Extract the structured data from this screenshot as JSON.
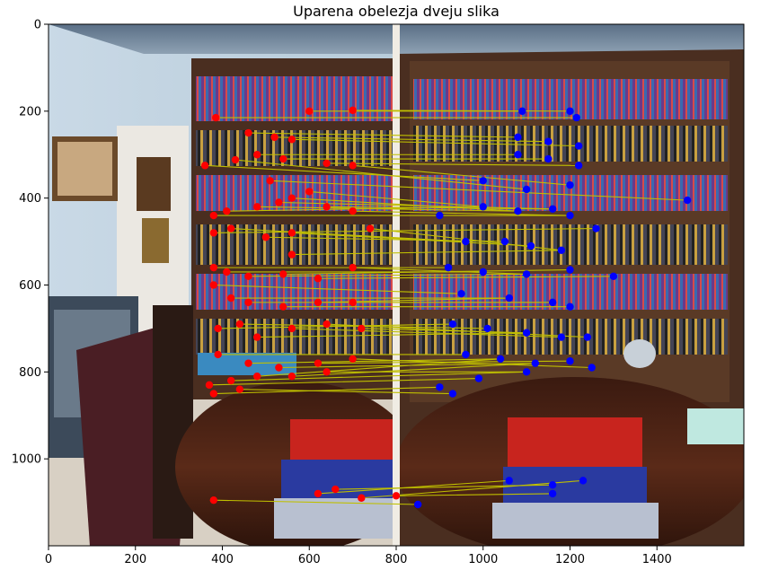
{
  "chart_data": {
    "type": "scatter",
    "title": "Uparena obelezja dveju slika",
    "xlabel": "",
    "ylabel": "",
    "xlim": [
      0,
      1600
    ],
    "ylim": [
      1200,
      0
    ],
    "x_ticks": [
      0,
      200,
      400,
      600,
      800,
      1000,
      1200,
      1400
    ],
    "y_ticks": [
      0,
      200,
      400,
      600,
      800,
      1000
    ],
    "grid": false,
    "colors": {
      "left_points": "#ff0000",
      "right_points": "#0000ff",
      "lines": "#bfbf00"
    },
    "series": [
      {
        "name": "",
        "color": "#ff0000",
        "points": [
          [
            385,
            215
          ],
          [
            600,
            200
          ],
          [
            700,
            198
          ],
          [
            460,
            250
          ],
          [
            520,
            260
          ],
          [
            560,
            265
          ],
          [
            480,
            300
          ],
          [
            540,
            310
          ],
          [
            640,
            320
          ],
          [
            360,
            325
          ],
          [
            430,
            312
          ],
          [
            700,
            325
          ],
          [
            510,
            360
          ],
          [
            600,
            385
          ],
          [
            560,
            400
          ],
          [
            530,
            410
          ],
          [
            380,
            440
          ],
          [
            410,
            430
          ],
          [
            480,
            420
          ],
          [
            640,
            420
          ],
          [
            700,
            430
          ],
          [
            380,
            480
          ],
          [
            420,
            470
          ],
          [
            500,
            490
          ],
          [
            560,
            480
          ],
          [
            740,
            470
          ],
          [
            560,
            530
          ],
          [
            380,
            560
          ],
          [
            410,
            570
          ],
          [
            460,
            580
          ],
          [
            540,
            575
          ],
          [
            620,
            585
          ],
          [
            700,
            560
          ],
          [
            380,
            600
          ],
          [
            420,
            630
          ],
          [
            460,
            640
          ],
          [
            540,
            650
          ],
          [
            620,
            640
          ],
          [
            700,
            640
          ],
          [
            390,
            700
          ],
          [
            440,
            690
          ],
          [
            480,
            720
          ],
          [
            560,
            700
          ],
          [
            640,
            690
          ],
          [
            720,
            700
          ],
          [
            390,
            760
          ],
          [
            460,
            780
          ],
          [
            530,
            790
          ],
          [
            620,
            780
          ],
          [
            700,
            770
          ],
          [
            370,
            830
          ],
          [
            420,
            820
          ],
          [
            480,
            810
          ],
          [
            560,
            810
          ],
          [
            640,
            800
          ],
          [
            380,
            850
          ],
          [
            440,
            840
          ],
          [
            380,
            1095
          ],
          [
            620,
            1080
          ],
          [
            660,
            1070
          ],
          [
            720,
            1090
          ],
          [
            800,
            1085
          ]
        ]
      },
      {
        "name": "",
        "color": "#0000ff",
        "points": [
          [
            1090,
            200
          ],
          [
            1200,
            200
          ],
          [
            1215,
            215
          ],
          [
            1080,
            260
          ],
          [
            1150,
            270
          ],
          [
            1220,
            280
          ],
          [
            1080,
            300
          ],
          [
            1150,
            310
          ],
          [
            1220,
            325
          ],
          [
            1000,
            360
          ],
          [
            1100,
            380
          ],
          [
            1200,
            370
          ],
          [
            1470,
            405
          ],
          [
            1000,
            420
          ],
          [
            1080,
            430
          ],
          [
            1160,
            425
          ],
          [
            1200,
            440
          ],
          [
            1260,
            470
          ],
          [
            900,
            440
          ],
          [
            960,
            500
          ],
          [
            1050,
            500
          ],
          [
            1110,
            510
          ],
          [
            1180,
            520
          ],
          [
            920,
            560
          ],
          [
            1000,
            570
          ],
          [
            1100,
            575
          ],
          [
            1200,
            565
          ],
          [
            1300,
            580
          ],
          [
            950,
            620
          ],
          [
            1060,
            630
          ],
          [
            1160,
            640
          ],
          [
            1200,
            650
          ],
          [
            930,
            690
          ],
          [
            1010,
            700
          ],
          [
            1100,
            710
          ],
          [
            1180,
            720
          ],
          [
            1240,
            720
          ],
          [
            960,
            760
          ],
          [
            1040,
            770
          ],
          [
            1120,
            780
          ],
          [
            1200,
            775
          ],
          [
            1250,
            790
          ],
          [
            990,
            815
          ],
          [
            1100,
            800
          ],
          [
            900,
            835
          ],
          [
            930,
            850
          ],
          [
            1060,
            1050
          ],
          [
            1160,
            1060
          ],
          [
            1230,
            1050
          ],
          [
            1160,
            1080
          ],
          [
            850,
            1105
          ]
        ]
      }
    ],
    "matches": [
      [
        385,
        215,
        1215,
        215
      ],
      [
        600,
        200,
        1090,
        200
      ],
      [
        700,
        198,
        1200,
        200
      ],
      [
        460,
        250,
        1080,
        260
      ],
      [
        520,
        260,
        1150,
        270
      ],
      [
        560,
        265,
        1220,
        280
      ],
      [
        480,
        300,
        1080,
        300
      ],
      [
        540,
        310,
        1150,
        310
      ],
      [
        640,
        320,
        1220,
        325
      ],
      [
        360,
        325,
        1000,
        360
      ],
      [
        430,
        312,
        1100,
        380
      ],
      [
        700,
        325,
        1200,
        370
      ],
      [
        510,
        360,
        1470,
        405
      ],
      [
        600,
        385,
        1000,
        420
      ],
      [
        560,
        400,
        1080,
        430
      ],
      [
        530,
        410,
        1160,
        425
      ],
      [
        380,
        440,
        1200,
        440
      ],
      [
        410,
        430,
        1000,
        420
      ],
      [
        480,
        420,
        1080,
        430
      ],
      [
        640,
        420,
        1160,
        425
      ],
      [
        700,
        430,
        1200,
        440
      ],
      [
        380,
        480,
        1260,
        470
      ],
      [
        420,
        470,
        960,
        500
      ],
      [
        500,
        490,
        1050,
        500
      ],
      [
        560,
        480,
        1110,
        510
      ],
      [
        740,
        470,
        1180,
        520
      ],
      [
        560,
        530,
        1180,
        520
      ],
      [
        380,
        560,
        920,
        560
      ],
      [
        410,
        570,
        1000,
        570
      ],
      [
        460,
        580,
        1100,
        575
      ],
      [
        540,
        575,
        1200,
        565
      ],
      [
        620,
        585,
        1300,
        580
      ],
      [
        700,
        560,
        1100,
        575
      ],
      [
        380,
        600,
        950,
        620
      ],
      [
        420,
        630,
        1060,
        630
      ],
      [
        460,
        640,
        1160,
        640
      ],
      [
        540,
        650,
        1200,
        650
      ],
      [
        620,
        640,
        1060,
        630
      ],
      [
        700,
        640,
        1160,
        640
      ],
      [
        390,
        700,
        930,
        690
      ],
      [
        440,
        690,
        1010,
        700
      ],
      [
        480,
        720,
        1100,
        710
      ],
      [
        560,
        700,
        1180,
        720
      ],
      [
        640,
        690,
        1240,
        720
      ],
      [
        720,
        700,
        1100,
        710
      ],
      [
        390,
        760,
        960,
        760
      ],
      [
        460,
        780,
        1040,
        770
      ],
      [
        530,
        790,
        1120,
        780
      ],
      [
        620,
        780,
        1200,
        775
      ],
      [
        700,
        770,
        1250,
        790
      ],
      [
        370,
        830,
        990,
        815
      ],
      [
        420,
        820,
        1100,
        800
      ],
      [
        480,
        810,
        1040,
        770
      ],
      [
        560,
        810,
        1120,
        780
      ],
      [
        640,
        800,
        1100,
        800
      ],
      [
        380,
        850,
        900,
        835
      ],
      [
        440,
        840,
        930,
        850
      ],
      [
        380,
        1095,
        850,
        1105
      ],
      [
        620,
        1080,
        1060,
        1050
      ],
      [
        660,
        1070,
        1160,
        1060
      ],
      [
        720,
        1090,
        1230,
        1050
      ],
      [
        800,
        1085,
        1160,
        1080
      ]
    ]
  }
}
